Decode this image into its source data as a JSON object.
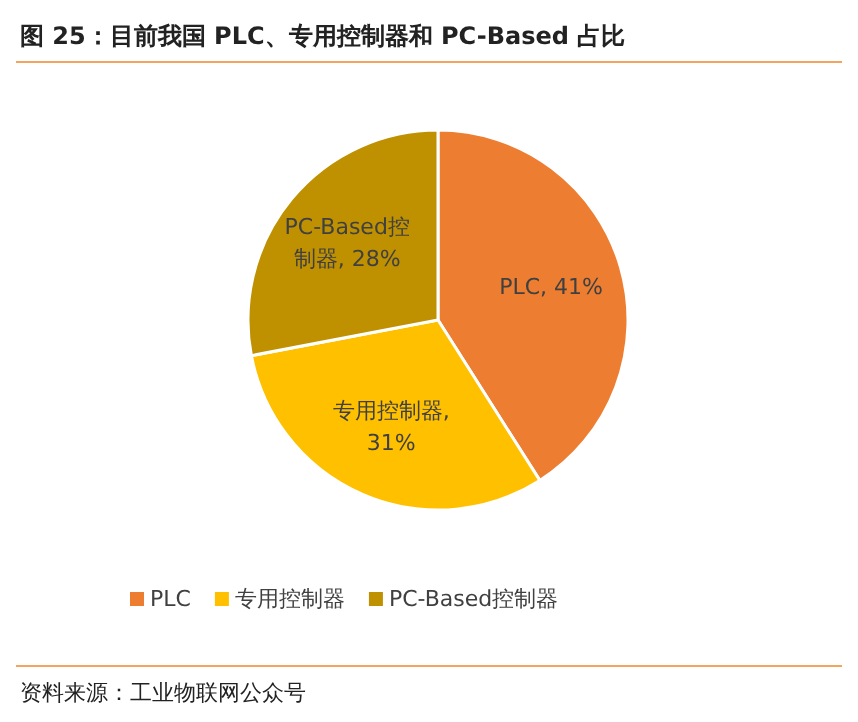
{
  "chart_data": {
    "type": "pie",
    "title": "图 25：目前我国 PLC、专用控制器和 PC-Based 占比",
    "categories": [
      "PLC",
      "专用控制器",
      "PC-Based控制器"
    ],
    "values": [
      41,
      31,
      28
    ],
    "colors": [
      "#ed7d31",
      "#ffc000",
      "#bf9000"
    ],
    "value_labels": [
      "PLC, 41%",
      "专用控制器, 31%",
      "PC-Based控制器, 28%"
    ],
    "legend": "bottom",
    "annotations": [
      "资料来源：工业物联网公众号"
    ]
  }
}
